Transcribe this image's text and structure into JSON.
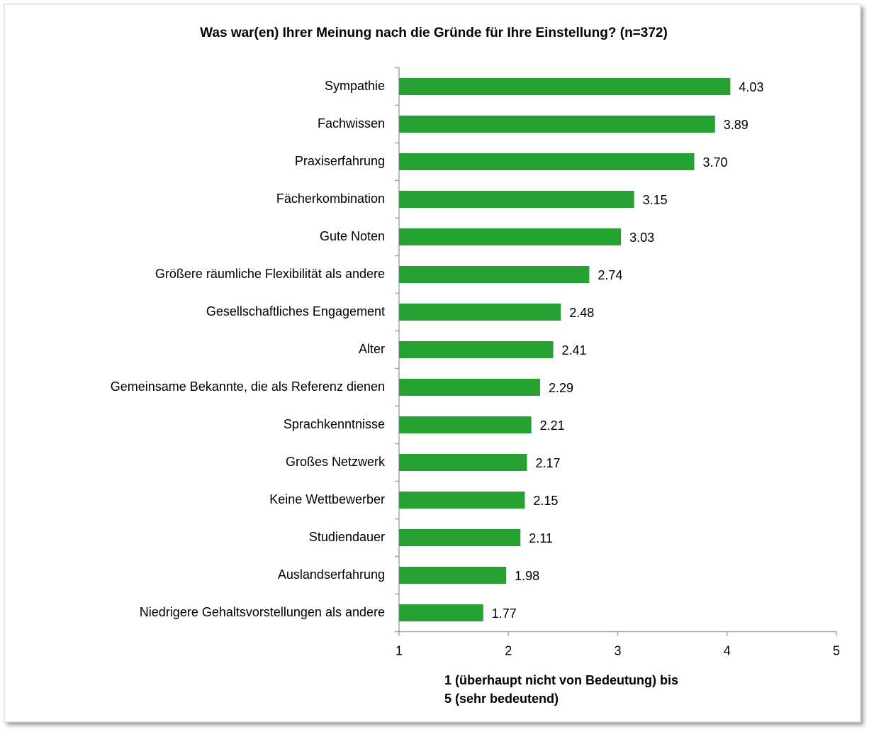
{
  "chart_data": {
    "type": "bar",
    "orientation": "horizontal",
    "title": "Was war(en) Ihrer Meinung nach die Gründe für Ihre Einstellung? (n=372)",
    "categories": [
      "Sympathie",
      "Fachwissen",
      "Praxiserfahrung",
      "Fächerkombination",
      "Gute Noten",
      "Größere räumliche Flexibilität als andere",
      "Gesellschaftliches Engagement",
      "Alter",
      "Gemeinsame Bekannte, die als Referenz dienen",
      "Sprachkenntnisse",
      "Großes Netzwerk",
      "Keine Wettbewerber",
      "Studiendauer",
      "Auslandserfahrung",
      "Niedrigere Gehaltsvorstellungen als andere"
    ],
    "values": [
      4.03,
      3.89,
      3.7,
      3.15,
      3.03,
      2.74,
      2.48,
      2.41,
      2.29,
      2.21,
      2.17,
      2.15,
      2.11,
      1.98,
      1.77
    ],
    "value_labels": [
      "4.03",
      "3.89",
      "3.70",
      "3.15",
      "3.03",
      "2.74",
      "2.48",
      "2.41",
      "2.29",
      "2.21",
      "2.17",
      "2.15",
      "2.11",
      "1.98",
      "1.77"
    ],
    "color": "#25a232",
    "xlim": [
      1,
      5
    ],
    "xticks": [
      1,
      2,
      3,
      4,
      5
    ],
    "xlabel": [
      "1 (überhaupt nicht von Bedeutung) bis",
      "5 (sehr bedeutend)"
    ],
    "grid": false
  }
}
